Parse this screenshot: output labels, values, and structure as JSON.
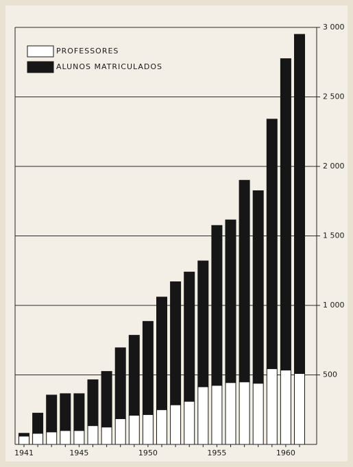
{
  "chart_data": {
    "type": "stacked-bar",
    "categories": [
      "1941",
      null,
      null,
      null,
      "1945",
      null,
      null,
      null,
      null,
      "1950",
      null,
      null,
      null,
      null,
      "1955",
      null,
      null,
      null,
      null,
      "1960",
      null
    ],
    "series": [
      {
        "name": "PROFESSORES",
        "color": "#ffffff",
        "values": [
          60,
          80,
          90,
          100,
          100,
          135,
          125,
          185,
          210,
          215,
          250,
          285,
          310,
          415,
          425,
          445,
          450,
          440,
          545,
          535,
          510
        ]
      },
      {
        "name": "ALUNOS MATRICULADOS",
        "color": "#161616",
        "values": [
          20,
          145,
          265,
          265,
          265,
          330,
          400,
          510,
          575,
          670,
          810,
          885,
          930,
          905,
          1150,
          1170,
          1450,
          1385,
          1795,
          2240,
          2440
        ]
      }
    ],
    "ylim": [
      0,
      3000
    ],
    "yticks": [
      500,
      {
        "value": 1000,
        "label": "1 000"
      },
      {
        "value": 1500,
        "label": "1 500"
      },
      {
        "value": 2000,
        "label": "2 000"
      },
      {
        "value": 2500,
        "label": "2 500"
      },
      {
        "value": 3000,
        "label": "3 000"
      }
    ],
    "grid": true
  }
}
